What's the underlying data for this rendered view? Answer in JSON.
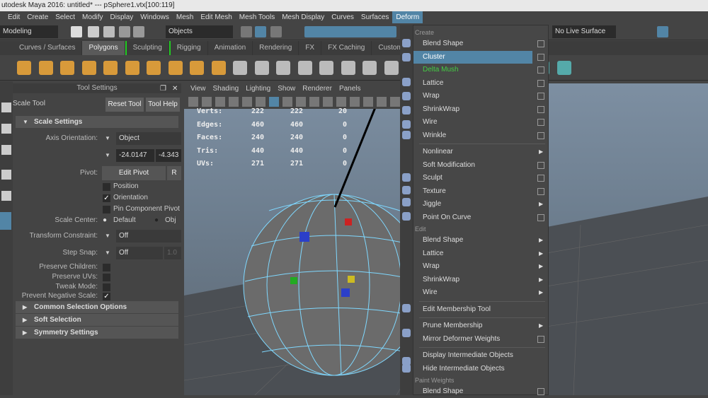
{
  "title": "utodesk Maya 2016: untitled*   ---   pSphere1.vtx[100:119]",
  "menubar": [
    "Edit",
    "Create",
    "Select",
    "Modify",
    "Display",
    "Windows",
    "Mesh",
    "Edit Mesh",
    "Mesh Tools",
    "Mesh Display",
    "Curves",
    "Surfaces",
    "Deform"
  ],
  "toolbar": {
    "mode": "Modeling",
    "selection": "Objects",
    "live_surface": "No Live Surface"
  },
  "shelf_tabs": [
    "Curves / Surfaces",
    "Polygons",
    "Sculpting",
    "Rigging",
    "Animation",
    "Rendering",
    "FX",
    "FX Caching",
    "Custom"
  ],
  "tool_settings": {
    "header": "Tool Settings",
    "tool_name": "Scale Tool",
    "reset": "Reset Tool",
    "help": "Tool Help",
    "scale_settings": "Scale Settings",
    "axis_orientation_label": "Axis Orientation:",
    "axis_orientation": "Object",
    "vec_x": "-24.0147",
    "vec_y": "-4.343",
    "pivot_label": "Pivot:",
    "edit_pivot": "Edit Pivot",
    "reset_pivot": "R",
    "position": "Position",
    "orientation": "Orientation",
    "pin_component_pivot": "Pin Component Pivot",
    "scale_center_label": "Scale Center:",
    "scale_default": "Default",
    "scale_obj": "Obj",
    "transform_constraint_label": "Transform Constraint:",
    "transform_constraint": "Off",
    "step_snap_label": "Step Snap:",
    "step_snap": "Off",
    "step_value": "1.0",
    "preserve_children": "Preserve Children:",
    "preserve_uvs": "Preserve UVs:",
    "tweak_mode": "Tweak Mode:",
    "prevent_negative_scale": "Prevent Negative Scale:",
    "orientation_checked": true,
    "prevent_negative_checked": true,
    "sections": [
      "Common Selection Options",
      "Soft Selection",
      "Symmetry Settings"
    ]
  },
  "viewport": {
    "menu": [
      "View",
      "Shading",
      "Lighting",
      "Show",
      "Renderer",
      "Panels"
    ],
    "hud": [
      [
        "Verts:",
        "222",
        "222",
        "20"
      ],
      [
        "Edges:",
        "460",
        "460",
        "0"
      ],
      [
        "Faces:",
        "240",
        "240",
        "0"
      ],
      [
        "Tris:",
        "440",
        "440",
        "0"
      ],
      [
        "UVs:",
        "271",
        "271",
        "0"
      ]
    ]
  },
  "deform_menu": {
    "create_header": "Create",
    "create": [
      {
        "label": "Blend Shape",
        "opt": true
      },
      {
        "label": "Cluster",
        "opt": true,
        "highlight": true
      },
      {
        "label": "Delta Mush",
        "opt": true,
        "green": true
      },
      {
        "label": "Lattice",
        "opt": true
      },
      {
        "label": "Wrap",
        "opt": true
      },
      {
        "label": "ShrinkWrap",
        "opt": true
      },
      {
        "label": "Wire",
        "opt": true
      },
      {
        "label": "Wrinkle",
        "opt": true
      }
    ],
    "create2": [
      {
        "label": "Nonlinear",
        "sub": true
      },
      {
        "label": "Soft Modification",
        "opt": true
      },
      {
        "label": "Sculpt",
        "opt": true
      },
      {
        "label": "Texture",
        "opt": true
      },
      {
        "label": "Jiggle",
        "sub": true
      },
      {
        "label": "Point On Curve",
        "opt": true
      }
    ],
    "edit_header": "Edit",
    "edit": [
      {
        "label": "Blend Shape",
        "sub": true
      },
      {
        "label": "Lattice",
        "sub": true
      },
      {
        "label": "Wrap",
        "sub": true
      },
      {
        "label": "ShrinkWrap",
        "sub": true
      },
      {
        "label": "Wire",
        "sub": true
      }
    ],
    "membership": [
      {
        "label": "Edit Membership Tool"
      }
    ],
    "prune": [
      {
        "label": "Prune Membership",
        "sub": true
      },
      {
        "label": "Mirror Deformer Weights",
        "opt": true
      }
    ],
    "intermediate": [
      {
        "label": "Display Intermediate Objects"
      },
      {
        "label": "Hide Intermediate Objects"
      }
    ],
    "paint_header": "Paint Weights",
    "paint": [
      {
        "label": "Blend Shape",
        "opt": true
      }
    ]
  },
  "colors": {
    "accent": "#5285a6",
    "highlight_green": "#44cc44",
    "wire": "#7fd8ff"
  }
}
